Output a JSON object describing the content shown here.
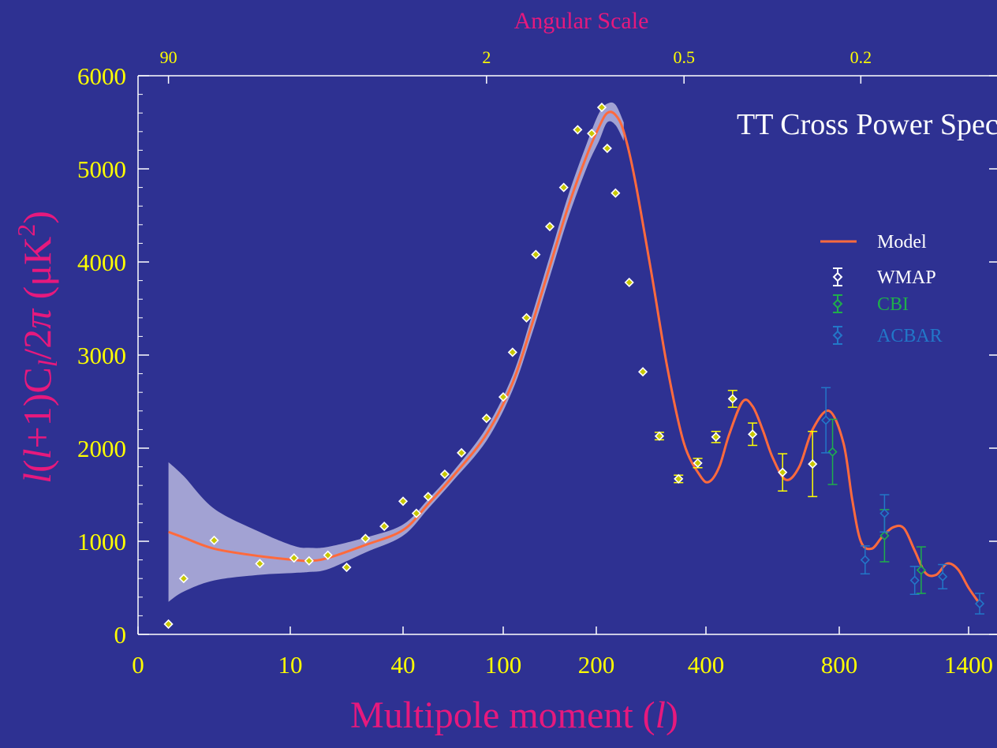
{
  "chart_data": {
    "type": "scatter",
    "title": "TT Cross Power Spectrum",
    "top_axis": {
      "label": "Angular Scale",
      "ticks": [
        {
          "label": "90",
          "l": 2
        },
        {
          "label": "2",
          "l": 90
        },
        {
          "label": "0.5",
          "l": 360
        },
        {
          "label": "0.2",
          "l": 900
        }
      ]
    },
    "xlabel": {
      "main": "Multipole moment (",
      "var": "l",
      "close": ")"
    },
    "ylabel": {
      "l1": "l",
      "a": "(",
      "l2": "l",
      "b": "+1)C",
      "sub": "l",
      "c": "/2",
      "pi": "π",
      "d": " (μK",
      "sup": "2",
      "e": ")"
    },
    "x_ticks": [
      {
        "label": "0",
        "l": 0
      },
      {
        "label": "10",
        "l": 10
      },
      {
        "label": "40",
        "l": 40
      },
      {
        "label": "100",
        "l": 100
      },
      {
        "label": "200",
        "l": 200
      },
      {
        "label": "400",
        "l": 400
      },
      {
        "label": "800",
        "l": 800
      },
      {
        "label": "1400",
        "l": 1400
      }
    ],
    "xlim": [
      0,
      1500
    ],
    "y_ticks": [
      "0",
      "1000",
      "2000",
      "3000",
      "4000",
      "5000",
      "6000"
    ],
    "ylim": [
      0,
      6000
    ],
    "legend": {
      "position": "right",
      "entries": [
        {
          "name": "Model",
          "kind": "line",
          "color": "#ff6a3d",
          "text_color": "#ffffff"
        },
        {
          "name": "WMAP",
          "kind": "point",
          "color": "#ffffff",
          "text_color": "#ffffff"
        },
        {
          "name": "CBI",
          "kind": "point",
          "color": "#1fae4b",
          "text_color": "#1fae4b"
        },
        {
          "name": "ACBAR",
          "kind": "point",
          "color": "#2277c8",
          "text_color": "#2277c8"
        }
      ]
    },
    "model": {
      "l": [
        2,
        3,
        5,
        8,
        11,
        15,
        20,
        30,
        40,
        55,
        70,
        90,
        110,
        130,
        150,
        170,
        190,
        205,
        220,
        235,
        250,
        270,
        300,
        330,
        360,
        390,
        410,
        440,
        470,
        510,
        540,
        570,
        600,
        640,
        680,
        720,
        770,
        820,
        860,
        900,
        950,
        1000,
        1050,
        1100,
        1150,
        1200,
        1250,
        1300,
        1350,
        1400,
        1450
      ],
      "cl": [
        1100,
        1040,
        920,
        840,
        800,
        790,
        820,
        960,
        1120,
        1400,
        1700,
        2150,
        2700,
        3300,
        3950,
        4600,
        5150,
        5450,
        5600,
        5580,
        5400,
        4900,
        3900,
        2850,
        2050,
        1700,
        1640,
        1800,
        2150,
        2500,
        2450,
        2200,
        1900,
        1660,
        1800,
        2200,
        2400,
        2050,
        1450,
        1000,
        920,
        1050,
        1150,
        1140,
        900,
        660,
        640,
        760,
        700,
        500,
        330
      ]
    },
    "model_band": {
      "upper": [
        1850,
        1700,
        1350,
        1100,
        950,
        930,
        940,
        1040,
        1180,
        1450,
        1750,
        2220,
        2780,
        3400,
        4060,
        4720,
        5280,
        5600,
        5700,
        5690,
        5500
      ],
      "lower": [
        350,
        460,
        580,
        640,
        660,
        670,
        700,
        880,
        1060,
        1350,
        1650,
        2080,
        2620,
        3200,
        3840,
        4480,
        5020,
        5300,
        5500,
        5470,
        5300
      ]
    },
    "series": [
      {
        "name": "WMAP",
        "color": "#ffffff",
        "points": [
          {
            "l": 2,
            "cl": 110
          },
          {
            "l": 3,
            "cl": 600
          },
          {
            "l": 5,
            "cl": 1010
          },
          {
            "l": 8,
            "cl": 760
          },
          {
            "l": 11,
            "cl": 820
          },
          {
            "l": 15,
            "cl": 790
          },
          {
            "l": 20,
            "cl": 850
          },
          {
            "l": 25,
            "cl": 720
          },
          {
            "l": 30,
            "cl": 1030
          },
          {
            "l": 35,
            "cl": 1160
          },
          {
            "l": 40,
            "cl": 1430
          },
          {
            "l": 48,
            "cl": 1300
          },
          {
            "l": 55,
            "cl": 1480
          },
          {
            "l": 65,
            "cl": 1720
          },
          {
            "l": 75,
            "cl": 1950
          },
          {
            "l": 90,
            "cl": 2320
          },
          {
            "l": 100,
            "cl": 2550
          },
          {
            "l": 110,
            "cl": 3030
          },
          {
            "l": 125,
            "cl": 3400
          },
          {
            "l": 135,
            "cl": 4080
          },
          {
            "l": 150,
            "cl": 4380
          },
          {
            "l": 165,
            "cl": 4800
          },
          {
            "l": 180,
            "cl": 5420
          },
          {
            "l": 195,
            "cl": 5380
          },
          {
            "l": 210,
            "cl": 5660
          },
          {
            "l": 220,
            "cl": 5220
          },
          {
            "l": 235,
            "cl": 4740
          },
          {
            "l": 260,
            "cl": 3780
          },
          {
            "l": 285,
            "cl": 2820
          },
          {
            "l": 315,
            "cl": 2130,
            "err": 40
          },
          {
            "l": 350,
            "cl": 1670,
            "err": 40
          },
          {
            "l": 385,
            "cl": 1840,
            "err": 50
          },
          {
            "l": 430,
            "cl": 2120,
            "err": 60
          },
          {
            "l": 480,
            "cl": 2530,
            "err": 90
          },
          {
            "l": 540,
            "cl": 2150,
            "err": 120
          },
          {
            "l": 630,
            "cl": 1740,
            "err": 200
          },
          {
            "l": 720,
            "cl": 1830,
            "err": 350
          }
        ]
      },
      {
        "name": "CBI",
        "color": "#1fae4b",
        "points": [
          {
            "l": 780,
            "cl": 1960,
            "err": 350
          },
          {
            "l": 1010,
            "cl": 1060,
            "err": 280
          },
          {
            "l": 1180,
            "cl": 690,
            "err": 250
          }
        ]
      },
      {
        "name": "ACBAR",
        "color": "#2277c8",
        "points": [
          {
            "l": 760,
            "cl": 2300,
            "err": 350
          },
          {
            "l": 920,
            "cl": 800,
            "err": 150
          },
          {
            "l": 1010,
            "cl": 1300,
            "err": 200
          },
          {
            "l": 1150,
            "cl": 580,
            "err": 150
          },
          {
            "l": 1280,
            "cl": 620,
            "err": 130
          },
          {
            "l": 1450,
            "cl": 330,
            "err": 110
          }
        ]
      }
    ]
  },
  "colors": {
    "background": "#2e3192",
    "axis": "#ffffff",
    "tick_label": "#ffff00",
    "label": "#e6197d",
    "model": "#ff6a3d",
    "band": "#b6b6de"
  }
}
